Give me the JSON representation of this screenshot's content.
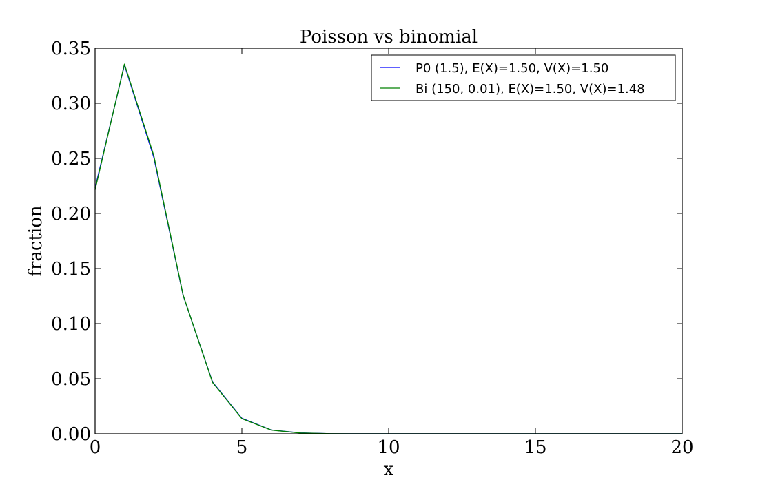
{
  "chart_data": {
    "type": "line",
    "title": "Poisson vs binomial",
    "xlabel": "x",
    "ylabel": "fraction",
    "xlim": [
      0,
      20
    ],
    "ylim": [
      0,
      0.35
    ],
    "xticks": [
      0,
      5,
      10,
      15,
      20
    ],
    "xtick_labels": [
      "0",
      "5",
      "10",
      "15",
      "20"
    ],
    "yticks": [
      0.0,
      0.05,
      0.1,
      0.15,
      0.2,
      0.25,
      0.3,
      0.35
    ],
    "ytick_labels": [
      "0.00",
      "0.05",
      "0.10",
      "0.15",
      "0.20",
      "0.25",
      "0.30",
      "0.35"
    ],
    "grid": false,
    "legend_position": "top-right",
    "x": [
      0,
      1,
      2,
      3,
      4,
      5,
      6,
      7,
      8,
      9,
      10,
      11,
      12,
      13,
      14,
      15,
      16,
      17,
      18,
      19,
      20
    ],
    "series": [
      {
        "name": "P0 (1.5), E(X)=1.50, V(X)=1.50",
        "color": "#0000ff",
        "values": [
          0.2231,
          0.3347,
          0.251,
          0.1255,
          0.0471,
          0.0141,
          0.0035,
          0.0008,
          0.0001,
          0.0,
          0.0,
          0.0,
          0.0,
          0.0,
          0.0,
          0.0,
          0.0,
          0.0,
          0.0,
          0.0,
          0.0
        ]
      },
      {
        "name": "Bi (150, 0.01), E(X)=1.50, V(X)=1.48",
        "color": "#008000",
        "values": [
          0.2215,
          0.3355,
          0.2525,
          0.1258,
          0.0467,
          0.0138,
          0.0034,
          0.0007,
          0.0001,
          0.0,
          0.0,
          0.0,
          0.0,
          0.0,
          0.0,
          0.0,
          0.0,
          0.0,
          0.0,
          0.0,
          0.0
        ]
      }
    ]
  }
}
